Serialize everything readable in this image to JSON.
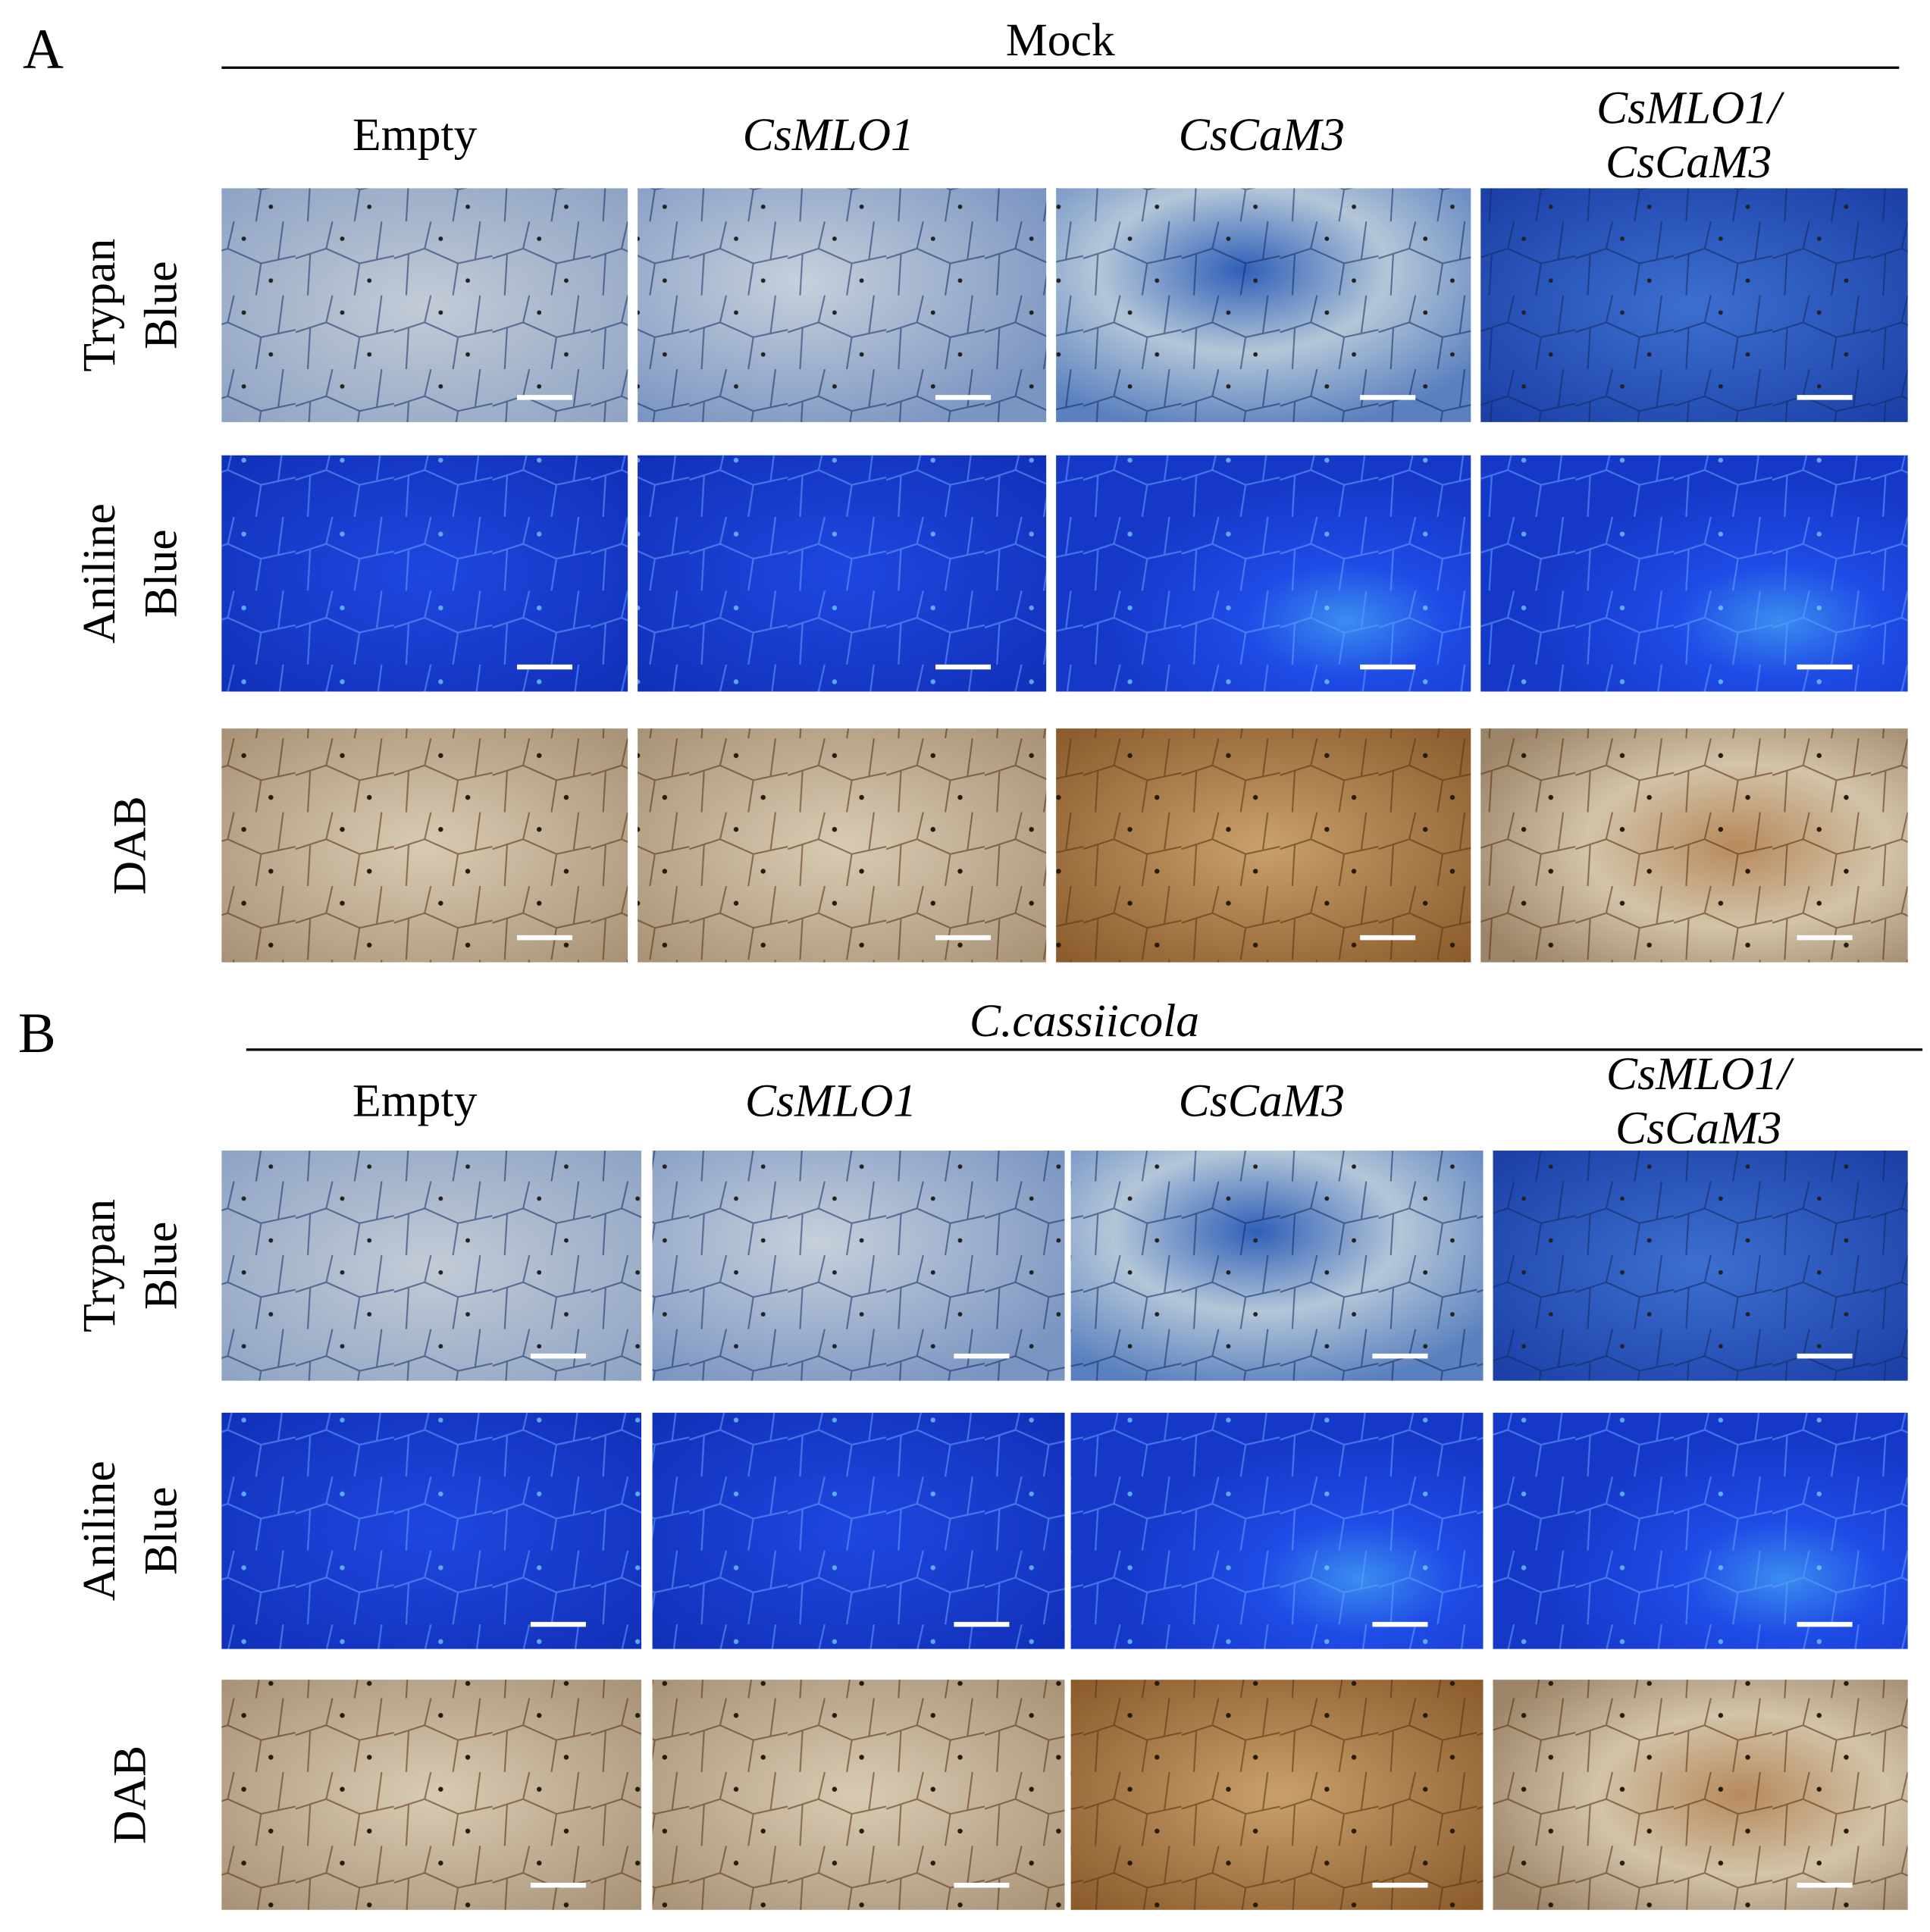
{
  "panels": [
    {
      "label": "A",
      "title": "Mock",
      "columns": [
        [
          "Empty"
        ],
        [
          "CsMLO1"
        ],
        [
          "CsCaM3"
        ],
        [
          "CsMLO1/",
          "CsCaM3"
        ]
      ],
      "rows": [
        [
          "Trypan",
          "Blue"
        ],
        [
          "Aniline",
          "Blue"
        ],
        [
          "DAB"
        ]
      ]
    },
    {
      "label": "B",
      "title": "C.cassiicola",
      "columns": [
        [
          "Empty"
        ],
        [
          "CsMLO1"
        ],
        [
          "CsCaM3"
        ],
        [
          "CsMLO1/",
          "CsCaM3"
        ]
      ],
      "rows": [
        [
          "Trypan",
          "Blue"
        ],
        [
          "Aniline",
          "Blue"
        ],
        [
          "DAB"
        ]
      ]
    }
  ]
}
